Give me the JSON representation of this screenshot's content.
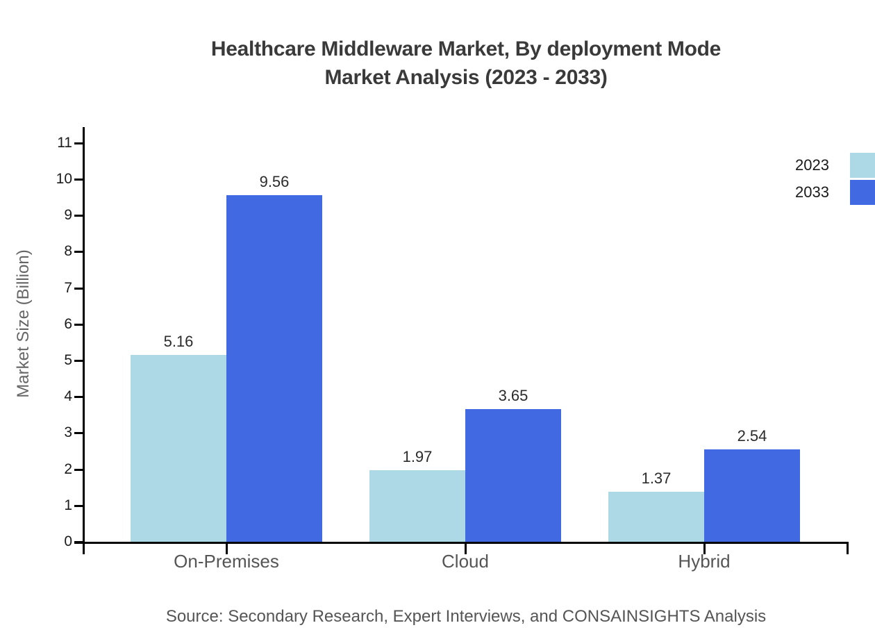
{
  "chart": {
    "title_line1": "Healthcare Middleware Market, By deployment Mode",
    "title_line2": "Market Analysis (2023 - 2033)",
    "source": "Source: Secondary Research, Expert Interviews, and CONSAINSIGHTS Analysis"
  },
  "chart_data": {
    "type": "bar",
    "title": "Healthcare Middleware Market, By deployment Mode Market Analysis (2023 - 2033)",
    "categories": [
      "On-Premises",
      "Cloud",
      "Hybrid"
    ],
    "series": [
      {
        "name": "2023",
        "color": "#ADD8E6",
        "values": [
          5.16,
          1.97,
          1.37
        ]
      },
      {
        "name": "2033",
        "color": "#4169E1",
        "values": [
          9.56,
          3.65,
          2.54
        ]
      }
    ],
    "xlabel": "",
    "ylabel": "Market Size (Billion)",
    "ylim": [
      0,
      11
    ],
    "yticks": [
      0,
      1,
      2,
      3,
      4,
      5,
      6,
      7,
      8,
      9,
      10,
      11
    ],
    "grid": false,
    "legend_position": "top-right",
    "value_labels": true,
    "axis_color": "#000000"
  }
}
